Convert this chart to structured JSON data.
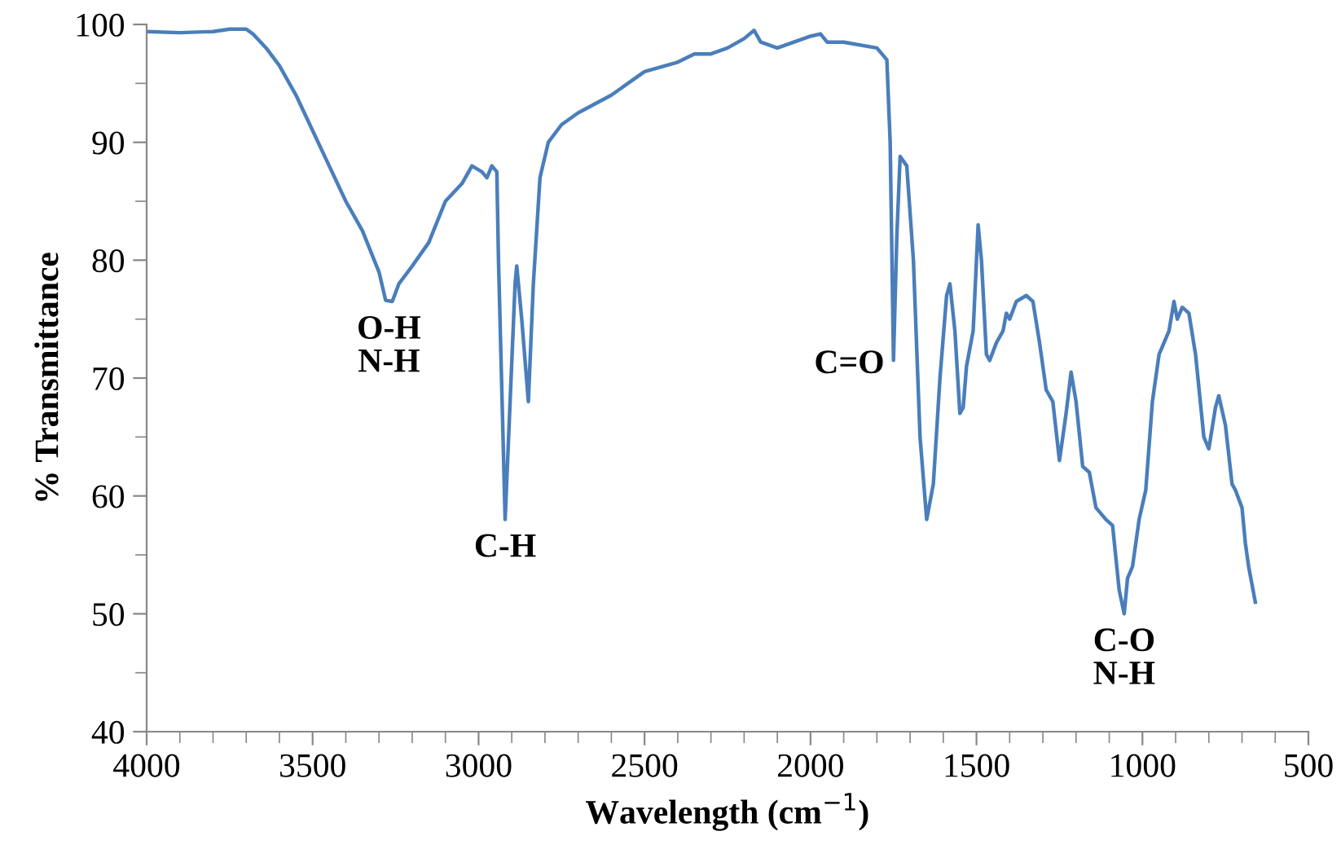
{
  "chart_data": {
    "type": "line",
    "xlabel": "Wavelength (cm$^{−1}$)",
    "ylabel": "% Transmittance",
    "xlim": [
      4000,
      500
    ],
    "xticks": [
      4000,
      3500,
      3000,
      2500,
      2000,
      1500,
      1000,
      500
    ],
    "ylim": [
      40,
      100
    ],
    "yticks": [
      40,
      50,
      60,
      70,
      80,
      90,
      100
    ],
    "grid": false,
    "legend": false,
    "marker": "none",
    "line_style": "solid",
    "series": [
      {
        "color": "#4a7ebb",
        "x": [
          4000,
          3900,
          3800,
          3750,
          3700,
          3680,
          3640,
          3600,
          3550,
          3500,
          3450,
          3400,
          3350,
          3300,
          3280,
          3260,
          3240,
          3200,
          3150,
          3100,
          3050,
          3020,
          2990,
          2975,
          2960,
          2945,
          2940,
          2920,
          2905,
          2890,
          2885,
          2870,
          2850,
          2835,
          2815,
          2790,
          2750,
          2700,
          2600,
          2500,
          2400,
          2350,
          2300,
          2250,
          2200,
          2170,
          2150,
          2100,
          2050,
          2000,
          1970,
          1950,
          1900,
          1800,
          1770,
          1760,
          1750,
          1740,
          1730,
          1710,
          1690,
          1670,
          1650,
          1630,
          1610,
          1590,
          1580,
          1565,
          1550,
          1540,
          1530,
          1510,
          1495,
          1485,
          1470,
          1460,
          1440,
          1420,
          1410,
          1400,
          1380,
          1350,
          1330,
          1310,
          1290,
          1270,
          1250,
          1230,
          1215,
          1200,
          1180,
          1160,
          1140,
          1110,
          1090,
          1070,
          1055,
          1045,
          1030,
          1010,
          990,
          970,
          950,
          920,
          905,
          895,
          880,
          860,
          840,
          815,
          800,
          780,
          770,
          750,
          730,
          720,
          700,
          690,
          680,
          660
        ],
        "values": [
          99.4,
          99.3,
          99.4,
          99.6,
          99.6,
          99.2,
          98.0,
          96.5,
          94,
          91,
          88,
          85,
          82.5,
          79,
          76.6,
          76.5,
          78,
          79.5,
          81.5,
          85,
          86.5,
          88,
          87.5,
          87,
          88,
          87.5,
          80,
          58,
          68,
          78,
          79.5,
          75,
          68,
          78,
          87,
          90,
          91.5,
          92.5,
          94,
          96,
          96.8,
          97.5,
          97.5,
          98,
          98.8,
          99.5,
          98.5,
          98,
          98.5,
          99,
          99.2,
          98.5,
          98.5,
          98,
          97,
          90,
          71.5,
          82,
          88.8,
          88,
          80,
          65,
          58,
          61,
          70,
          77,
          78,
          74,
          67,
          67.5,
          71,
          74,
          83,
          80,
          72,
          71.5,
          73,
          74,
          75.5,
          75,
          76.5,
          77,
          76.5,
          73,
          69,
          68,
          63,
          67,
          70.5,
          68,
          62.5,
          62,
          59,
          58,
          57.5,
          52,
          50,
          53,
          54,
          58,
          60.5,
          68,
          72,
          74,
          76.5,
          75,
          76,
          75.5,
          72,
          65,
          64,
          67.5,
          68.5,
          66,
          61,
          60.5,
          59,
          56,
          54,
          51
        ]
      }
    ],
    "annotations": [
      {
        "text": "O-H\nN-H",
        "x": 3270,
        "y": 76.5
      },
      {
        "text": "C-H",
        "x": 2920,
        "y": 58
      },
      {
        "text": "C=O",
        "x": 1750,
        "y": 71.5
      },
      {
        "text": "C-O\nN-H",
        "x": 1055,
        "y": 50
      }
    ]
  }
}
